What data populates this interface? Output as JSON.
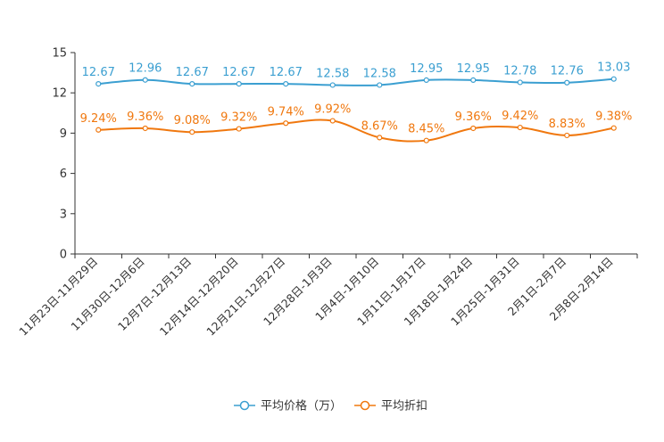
{
  "chart_data": {
    "type": "line",
    "title": "",
    "xlabel": "",
    "ylabel": "",
    "ylim": [
      0,
      15
    ],
    "yticks": [
      0,
      3,
      6,
      9,
      12,
      15
    ],
    "grid": false,
    "legend_position": "bottom-center",
    "categories": [
      "11月23日-11月29日",
      "11月30日-12月6日",
      "12月7日-12月13日",
      "12月14日-12月20日",
      "12月21日-12月27日",
      "12月28日-1月3日",
      "1月4日-1月10日",
      "1月11日-1月17日",
      "1月18日-1月24日",
      "1月25日-1月31日",
      "2月1日-2月7日",
      "2月8日-2月14日"
    ],
    "series": [
      {
        "name": "平均价格（万）",
        "color": "#3b9fd1",
        "values": [
          12.67,
          12.96,
          12.67,
          12.67,
          12.67,
          12.58,
          12.58,
          12.95,
          12.95,
          12.78,
          12.76,
          13.03
        ],
        "labels": [
          "12.67",
          "12.96",
          "12.67",
          "12.67",
          "12.67",
          "12.58",
          "12.58",
          "12.95",
          "12.95",
          "12.78",
          "12.76",
          "13.03"
        ]
      },
      {
        "name": "平均折扣",
        "color": "#f0780f",
        "values": [
          9.24,
          9.36,
          9.08,
          9.32,
          9.74,
          9.92,
          8.67,
          8.45,
          9.36,
          9.42,
          8.83,
          9.38
        ],
        "labels": [
          "9.24%",
          "9.36%",
          "9.08%",
          "9.32%",
          "9.74%",
          "9.92%",
          "8.67%",
          "8.45%",
          "9.36%",
          "9.42%",
          "8.83%",
          "9.38%"
        ]
      }
    ]
  }
}
